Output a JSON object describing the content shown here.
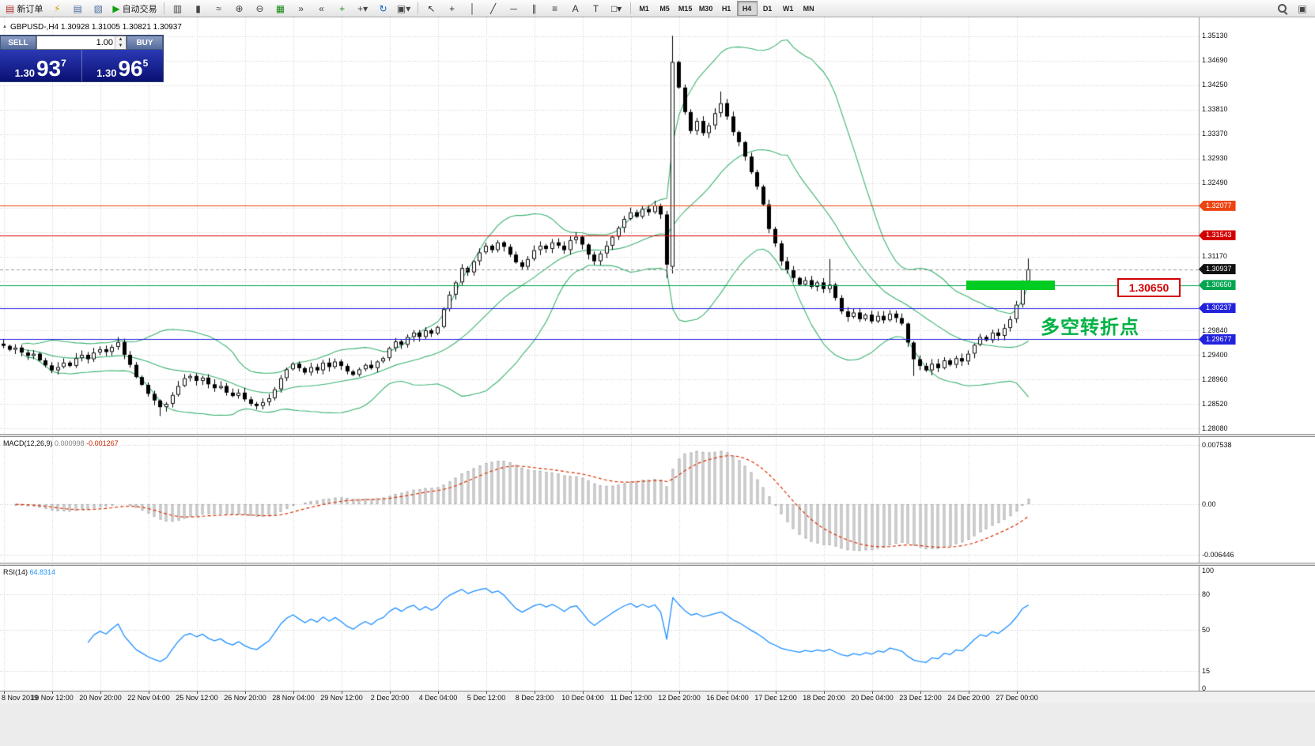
{
  "symbol_header": {
    "text": "GBPUSD-,H4 1.30928 1.31005 1.30821 1.30937"
  },
  "toolbar": {
    "new_order_label": "新订单",
    "autotrading_label": "自动交易",
    "left_icons": [
      {
        "name": "metaeditor-icon",
        "glyph": "⚡",
        "color": "#d89c00"
      },
      {
        "name": "market-watch-icon",
        "glyph": "▤",
        "color": "#4a6ea0"
      },
      {
        "name": "navigator-icon",
        "glyph": "▧",
        "color": "#4a6ea0"
      }
    ],
    "chart_tool_icons": [
      {
        "name": "bar-chart-icon",
        "glyph": "▥",
        "color": "#444444"
      },
      {
        "name": "candlestick-chart-icon",
        "glyph": "▮",
        "color": "#444444"
      },
      {
        "name": "line-chart-icon",
        "glyph": "≈",
        "color": "#444444"
      },
      {
        "name": "zoom-in-icon",
        "glyph": "⊕",
        "color": "#444444"
      },
      {
        "name": "zoom-out-icon",
        "glyph": "⊖",
        "color": "#444444"
      },
      {
        "name": "tile-windows-icon",
        "glyph": "▦",
        "color": "#1a8a1a"
      },
      {
        "name": "auto-scroll-icon",
        "glyph": "»",
        "color": "#444444"
      },
      {
        "name": "chart-shift-icon",
        "glyph": "«",
        "color": "#444444"
      },
      {
        "name": "indicators-icon",
        "glyph": "+",
        "color": "#1a8a1a"
      },
      {
        "name": "indicator-dropdown-icon",
        "glyph": "+▾",
        "color": "#444444"
      },
      {
        "name": "period-refresh-icon",
        "glyph": "↻",
        "color": "#1060c0"
      },
      {
        "name": "template-icon",
        "glyph": "▣▾",
        "color": "#444444"
      }
    ],
    "draw_tool_icons": [
      {
        "name": "cursor-icon",
        "glyph": "↖",
        "color": "#333333"
      },
      {
        "name": "crosshair-icon",
        "glyph": "+",
        "color": "#333333"
      },
      {
        "name": "vertical-line-icon",
        "glyph": "│",
        "color": "#333333"
      },
      {
        "name": "trendline-icon",
        "glyph": "╱",
        "color": "#333333"
      },
      {
        "name": "horizontal-line-icon",
        "glyph": "─",
        "color": "#333333"
      },
      {
        "name": "channel-icon",
        "glyph": "∥",
        "color": "#333333"
      },
      {
        "name": "fibonacci-icon",
        "glyph": "≡",
        "color": "#333333"
      },
      {
        "name": "text-icon",
        "glyph": "A",
        "color": "#333333"
      },
      {
        "name": "text-label-icon",
        "glyph": "T",
        "color": "#333333"
      },
      {
        "name": "shapes-icon",
        "glyph": "□▾",
        "color": "#333333"
      }
    ],
    "timeframes": [
      "M1",
      "M5",
      "M15",
      "M30",
      "H1",
      "H4",
      "D1",
      "W1",
      "MN"
    ],
    "active_timeframe": "H4",
    "right_icons": [
      {
        "name": "search-icon",
        "glyph": "",
        "mag": true
      },
      {
        "name": "new-window-icon",
        "glyph": "▣",
        "color": "#444444"
      }
    ]
  },
  "trade_panel": {
    "sell_label": "SELL",
    "buy_label": "BUY",
    "volume": "1.00",
    "bid_small": "1.30",
    "bid_big": "93",
    "bid_sup": "7",
    "ask_small": "1.30",
    "ask_big": "96",
    "ask_sup": "5"
  },
  "macd": {
    "title": "MACD(12,26,9)",
    "main_value": "0.000998",
    "signal_value": "-0.001267",
    "fast": 12,
    "slow": 26,
    "smooth": 9,
    "axis": [
      {
        "label": "0.007538",
        "v": 0.007538
      },
      {
        "label": "0.00",
        "v": 0
      },
      {
        "label": "-0.006446",
        "v": -0.006446
      }
    ]
  },
  "rsi": {
    "title": "RSI(14)",
    "value": "64.8314",
    "period": 14,
    "levels": [
      80,
      50,
      15
    ],
    "axis": [
      {
        "label": "100",
        "v": 100
      },
      {
        "label": "80",
        "v": 80
      },
      {
        "label": "50",
        "v": 50
      },
      {
        "label": "15",
        "v": 15
      },
      {
        "label": "0",
        "v": 0
      }
    ]
  },
  "chart_data": {
    "type": "candlestick",
    "symbol": "GBPUSD-",
    "timeframe": "H4",
    "ohlc_display": {
      "open": "1.30928",
      "high": "1.31005",
      "low": "1.30821",
      "close": "1.30937"
    },
    "first_open": 1.296,
    "closes": [
      1.2956,
      1.2949,
      1.2953,
      1.2944,
      1.2938,
      1.2942,
      1.293,
      1.2921,
      1.2912,
      1.2918,
      1.2926,
      1.292,
      1.2934,
      1.294,
      1.2932,
      1.2944,
      1.295,
      1.2945,
      1.2954,
      1.2963,
      1.294,
      1.2922,
      1.29,
      1.2886,
      1.287,
      1.2858,
      1.2846,
      1.2852,
      1.2868,
      1.2884,
      1.2898,
      1.2902,
      1.2893,
      1.2899,
      1.2887,
      1.288,
      1.2884,
      1.2872,
      1.2866,
      1.2872,
      1.286,
      1.2852,
      1.2848,
      1.2855,
      1.2862,
      1.2878,
      1.2898,
      1.2914,
      1.2924,
      1.2916,
      1.2908,
      1.2918,
      1.2912,
      1.2926,
      1.2918,
      1.2928,
      1.292,
      1.291,
      1.2904,
      1.2914,
      1.2922,
      1.2916,
      1.2928,
      1.2934,
      1.2952,
      1.2964,
      1.2958,
      1.2972,
      1.298,
      1.2972,
      1.2984,
      1.2978,
      1.299,
      1.3022,
      1.3048,
      1.307,
      1.3096,
      1.3088,
      1.3108,
      1.3124,
      1.3136,
      1.3128,
      1.3142,
      1.3134,
      1.312,
      1.3106,
      1.3098,
      1.3112,
      1.3128,
      1.3136,
      1.313,
      1.3142,
      1.3136,
      1.3128,
      1.3146,
      1.3152,
      1.3138,
      1.312,
      1.3108,
      1.3122,
      1.3136,
      1.3152,
      1.3168,
      1.3184,
      1.3196,
      1.3188,
      1.3202,
      1.3196,
      1.3208,
      1.3192,
      1.3102,
      1.3466,
      1.342,
      1.3376,
      1.3342,
      1.336,
      1.3338,
      1.3352,
      1.3374,
      1.3392,
      1.3368,
      1.334,
      1.3322,
      1.3296,
      1.3268,
      1.3242,
      1.321,
      1.3166,
      1.314,
      1.3108,
      1.3092,
      1.3078,
      1.3066,
      1.3074,
      1.3062,
      1.307,
      1.3058,
      1.3066,
      1.3042,
      1.3018,
      1.3008,
      1.3016,
      1.3004,
      1.3012,
      1.3,
      1.301,
      1.3002,
      1.3014,
      1.3006,
      1.2996,
      1.2962,
      1.2932,
      1.292,
      1.2912,
      1.2924,
      1.2916,
      1.293,
      1.2922,
      1.2934,
      1.2928,
      1.2942,
      1.2958,
      1.2972,
      1.2966,
      1.298,
      1.2974,
      1.2988,
      1.3004,
      1.303,
      1.3072,
      1.30937
    ],
    "overrides": {
      "19": {
        "h": 1.2972
      },
      "26": {
        "l": 1.283
      },
      "110": {
        "l": 1.3078
      },
      "111": {
        "o": 1.3098,
        "h": 1.3513,
        "l": 1.3086
      },
      "119": {
        "h": 1.3413
      },
      "137": {
        "h": 1.3112
      },
      "151": {
        "l": 1.2902
      },
      "170": {
        "h": 1.3113
      }
    },
    "bollinger": {
      "period": 20,
      "deviation": 2,
      "color": "#3cb371"
    },
    "price_axis": {
      "top": 1.3546,
      "bottom": 1.2798,
      "ticks": [
        {
          "label": "1.35130"
        },
        {
          "label": "1.34690"
        },
        {
          "label": "1.34250"
        },
        {
          "label": "1.33810"
        },
        {
          "label": "1.33370"
        },
        {
          "label": "1.32930"
        },
        {
          "label": "1.32490"
        },
        {
          "label": "1.31170"
        },
        {
          "label": "1.29840"
        },
        {
          "label": "1.29400"
        },
        {
          "label": "1.28960"
        },
        {
          "label": "1.28520"
        },
        {
          "label": "1.28080"
        }
      ]
    },
    "grid_base": 1.2808,
    "grid_step": 0.0044,
    "hlines": [
      {
        "price": 1.32077,
        "color": "#ee4411",
        "style": "solid",
        "name": "resistance-line-1"
      },
      {
        "price": 1.31543,
        "color": "#d40000",
        "style": "solid",
        "name": "resistance-line-2"
      },
      {
        "price": 1.30937,
        "color": "#999999",
        "style": "dash",
        "name": "bid-price-line"
      },
      {
        "price": 1.3065,
        "color": "#00a550",
        "style": "solid",
        "name": "pivot-line"
      },
      {
        "price": 1.30237,
        "color": "#2222dd",
        "style": "solid",
        "name": "support-line-1"
      },
      {
        "price": 1.29677,
        "color": "#2222dd",
        "style": "solid",
        "name": "support-line-2"
      }
    ],
    "tags": [
      {
        "label": "1.32077",
        "price": 1.32077,
        "color": "#ee4411"
      },
      {
        "label": "1.31543",
        "price": 1.31543,
        "color": "#d40000"
      },
      {
        "label": "1.30937",
        "price": 1.30937,
        "color": "#111111"
      },
      {
        "label": "1.30650",
        "price": 1.3065,
        "color": "#00a550"
      },
      {
        "label": "1.30237",
        "price": 1.30237,
        "color": "#2222dd"
      },
      {
        "label": "1.29677",
        "price": 1.29677,
        "color": "#2222dd"
      }
    ],
    "rectangle": {
      "from_index": 160,
      "to_index": 174,
      "price": 1.3065,
      "color": "#00cc22"
    },
    "annotation": {
      "text": "多空转折点",
      "color": "#00b244"
    },
    "price_box": {
      "text": "1.30650"
    },
    "label_every": 8,
    "time_labels": [
      "8 Nov 2019",
      "19 Nov 12:00",
      "20 Nov 20:00",
      "22 Nov 04:00",
      "25 Nov 12:00",
      "26 Nov 20:00",
      "28 Nov 04:00",
      "29 Nov 12:00",
      "2 Dec 20:00",
      "4 Dec 04:00",
      "5 Dec 12:00",
      "8 Dec 23:00",
      "10 Dec 04:00",
      "11 Dec 12:00",
      "12 Dec 20:00",
      "16 Dec 04:00",
      "17 Dec 12:00",
      "18 Dec 20:00",
      "20 Dec 04:00",
      "23 Dec 12:00",
      "24 Dec 20:00",
      "27 Dec 00:00"
    ]
  }
}
